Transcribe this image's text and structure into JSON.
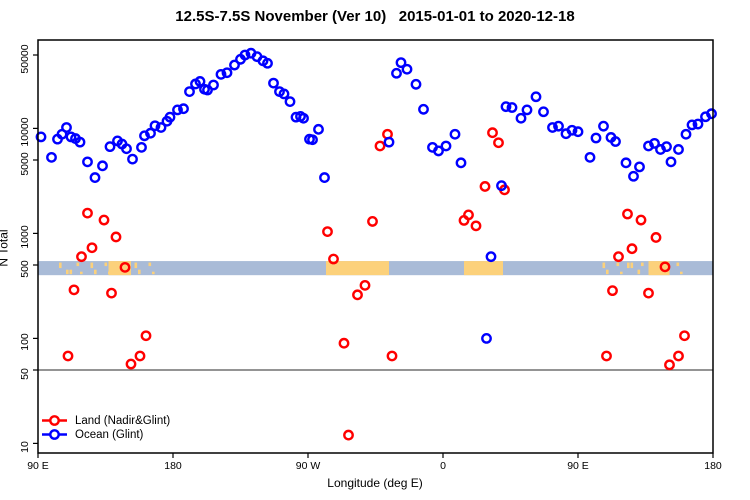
{
  "title": "12.5S-7.5S November (Ver 10)   2015-01-01 to 2020-12-18",
  "legend": {
    "items": [
      {
        "label": "Land (Nadir&Glint)",
        "color": "#ff0000"
      },
      {
        "label": "Ocean (Glint)",
        "color": "#0000ff"
      }
    ]
  },
  "chart_data": {
    "type": "scatter",
    "title": "12.5S-7.5S November (Ver 10)   2015-01-01 to 2020-12-18",
    "xlabel": "Longitude (deg E)",
    "ylabel": "N Total",
    "x_axis": {
      "min": 90,
      "max": 540,
      "ticks": [
        {
          "value": 90,
          "label": "90 E"
        },
        {
          "value": 180,
          "label": "180"
        },
        {
          "value": 270,
          "label": "90 W"
        },
        {
          "value": 360,
          "label": "0"
        },
        {
          "value": 450,
          "label": "90 E"
        },
        {
          "value": 540,
          "label": "180"
        }
      ]
    },
    "y_axis": {
      "scale": "log10",
      "min": 8,
      "max": 70000,
      "ticks": [
        {
          "value": 10,
          "label": "10"
        },
        {
          "value": 50,
          "label": "50"
        },
        {
          "value": 100,
          "label": "100"
        },
        {
          "value": 500,
          "label": "500"
        },
        {
          "value": 1000,
          "label": "1000"
        },
        {
          "value": 5000,
          "label": "5000"
        },
        {
          "value": 10000,
          "label": "10000"
        },
        {
          "value": 50000,
          "label": "50000"
        }
      ]
    },
    "reference_line": {
      "y_value": 50,
      "color": "#555555"
    },
    "land_ocean_strip": {
      "y_value_range": [
        400,
        545
      ],
      "ocean_color": "#a9bbd7",
      "land_color": "#fcd17b",
      "land_segments": [
        {
          "from": 104,
          "to": 137,
          "style": "speckle"
        },
        {
          "from": 137,
          "to": 152,
          "style": "solid"
        },
        {
          "from": 152,
          "to": 167,
          "style": "speckle"
        },
        {
          "from": 282,
          "to": 324,
          "style": "solid"
        },
        {
          "from": 374,
          "to": 400,
          "style": "solid"
        },
        {
          "from": 464,
          "to": 497,
          "style": "speckle"
        },
        {
          "from": 497,
          "to": 511,
          "style": "solid"
        },
        {
          "from": 511,
          "to": 524,
          "style": "speckle"
        }
      ]
    },
    "series": [
      {
        "name": "Land (Nadir&Glint)",
        "color": "#ff0000",
        "marker": "open-circle",
        "points": [
          [
            123,
            1560
          ],
          [
            134,
            1340
          ],
          [
            142,
            925
          ],
          [
            126,
            730
          ],
          [
            119,
            600
          ],
          [
            148,
            475
          ],
          [
            114,
            290
          ],
          [
            139,
            270
          ],
          [
            162,
            106
          ],
          [
            110,
            68
          ],
          [
            158,
            68
          ],
          [
            152,
            57
          ],
          [
            283,
            1040
          ],
          [
            287,
            570
          ],
          [
            308,
            320
          ],
          [
            303,
            260
          ],
          [
            294,
            90
          ],
          [
            326,
            68
          ],
          [
            297,
            12
          ],
          [
            313,
            1300
          ],
          [
            318,
            6800
          ],
          [
            323,
            8800
          ],
          [
            393,
            9100
          ],
          [
            397,
            7300
          ],
          [
            388,
            2800
          ],
          [
            401,
            2600
          ],
          [
            377,
            1500
          ],
          [
            374,
            1330
          ],
          [
            382,
            1180
          ],
          [
            483,
            1530
          ],
          [
            492,
            1340
          ],
          [
            502,
            915
          ],
          [
            486,
            715
          ],
          [
            477,
            600
          ],
          [
            508,
            480
          ],
          [
            473,
            285
          ],
          [
            497,
            270
          ],
          [
            521,
            106
          ],
          [
            469,
            68
          ],
          [
            517,
            68
          ],
          [
            511,
            56
          ]
        ]
      },
      {
        "name": "Ocean (Glint)",
        "color": "#0000ff",
        "marker": "open-circle",
        "points": [
          [
            92,
            8300
          ],
          [
            99,
            5300
          ],
          [
            103,
            7900
          ],
          [
            106,
            8800
          ],
          [
            109,
            10200
          ],
          [
            112,
            8300
          ],
          [
            115,
            8000
          ],
          [
            118,
            7400
          ],
          [
            123,
            4800
          ],
          [
            128,
            3400
          ],
          [
            133,
            4400
          ],
          [
            138,
            6700
          ],
          [
            143,
            7600
          ],
          [
            146,
            7100
          ],
          [
            149,
            6400
          ],
          [
            153,
            5100
          ],
          [
            159,
            6600
          ],
          [
            161,
            8500
          ],
          [
            165,
            9000
          ],
          [
            168,
            10600
          ],
          [
            172,
            10200
          ],
          [
            176,
            11700
          ],
          [
            178,
            12800
          ],
          [
            183,
            15000
          ],
          [
            187,
            15400
          ],
          [
            191,
            22400
          ],
          [
            195,
            26500
          ],
          [
            198,
            28000
          ],
          [
            201,
            23600
          ],
          [
            203,
            23200
          ],
          [
            207,
            25900
          ],
          [
            212,
            32700
          ],
          [
            216,
            33900
          ],
          [
            221,
            40100
          ],
          [
            225,
            45500
          ],
          [
            228,
            50000
          ],
          [
            232,
            52000
          ],
          [
            236,
            48200
          ],
          [
            240,
            44000
          ],
          [
            243,
            41700
          ],
          [
            247,
            27000
          ],
          [
            251,
            22400
          ],
          [
            254,
            21300
          ],
          [
            258,
            18000
          ],
          [
            262,
            12800
          ],
          [
            265,
            13000
          ],
          [
            267,
            12500
          ],
          [
            271,
            7900
          ],
          [
            273,
            7800
          ],
          [
            277,
            9800
          ],
          [
            281,
            3400
          ],
          [
            324,
            7400
          ],
          [
            329,
            33500
          ],
          [
            332,
            42300
          ],
          [
            336,
            36600
          ],
          [
            342,
            26300
          ],
          [
            347,
            15200
          ],
          [
            353,
            6600
          ],
          [
            357,
            6100
          ],
          [
            362,
            6800
          ],
          [
            368,
            8800
          ],
          [
            372,
            4700
          ],
          [
            389,
            100
          ],
          [
            392,
            600
          ],
          [
            399,
            2850
          ],
          [
            402,
            16100
          ],
          [
            406,
            15800
          ],
          [
            412,
            12500
          ],
          [
            416,
            15000
          ],
          [
            422,
            20000
          ],
          [
            427,
            14400
          ],
          [
            433,
            10200
          ],
          [
            437,
            10500
          ],
          [
            442,
            8900
          ],
          [
            446,
            9600
          ],
          [
            450,
            9300
          ],
          [
            458,
            5300
          ],
          [
            462,
            8100
          ],
          [
            467,
            10500
          ],
          [
            472,
            8200
          ],
          [
            475,
            7500
          ],
          [
            482,
            4700
          ],
          [
            487,
            3500
          ],
          [
            491,
            4300
          ],
          [
            497,
            6800
          ],
          [
            501,
            7200
          ],
          [
            505,
            6300
          ],
          [
            509,
            6700
          ],
          [
            512,
            4800
          ],
          [
            517,
            6300
          ],
          [
            522,
            8800
          ],
          [
            526,
            10800
          ],
          [
            530,
            11000
          ],
          [
            535,
            12900
          ],
          [
            539,
            13800
          ]
        ]
      }
    ]
  }
}
